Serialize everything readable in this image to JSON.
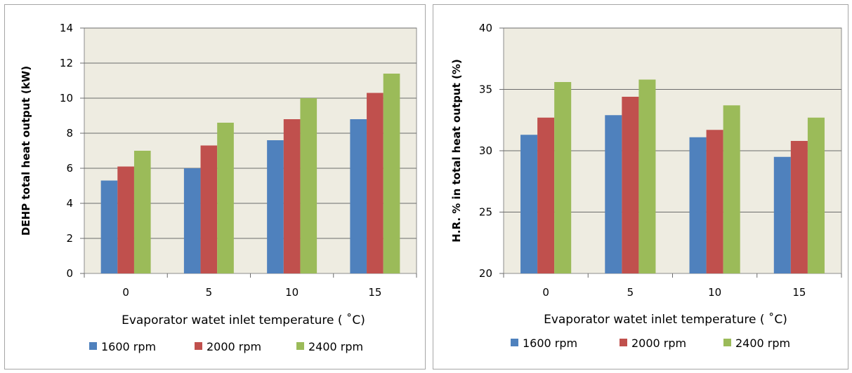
{
  "chart_data": [
    {
      "type": "bar",
      "categories": [
        "0",
        "5",
        "10",
        "15"
      ],
      "series": [
        {
          "name": "1600 rpm",
          "values": [
            5.3,
            6.0,
            7.6,
            8.8
          ],
          "color": "#4f81bd"
        },
        {
          "name": "2000 rpm",
          "values": [
            6.1,
            7.3,
            8.8,
            10.3
          ],
          "color": "#c0504d"
        },
        {
          "name": "2400 rpm",
          "values": [
            7.0,
            8.6,
            10.0,
            11.4
          ],
          "color": "#9bbb59"
        }
      ],
      "xlabel": "Evaporator watet inlet temperature ( ˚C)",
      "ylabel": "DEHP  total heat output  (kW)",
      "ylim": [
        0,
        14
      ],
      "yticks": [
        0,
        2,
        4,
        6,
        8,
        10,
        12,
        14
      ],
      "grid": true,
      "legend_position": "bottom",
      "plot_background": "#eeece1"
    },
    {
      "type": "bar",
      "categories": [
        "0",
        "5",
        "10",
        "15"
      ],
      "series": [
        {
          "name": "1600 rpm",
          "values": [
            31.3,
            32.9,
            31.1,
            29.5
          ],
          "color": "#4f81bd"
        },
        {
          "name": "2000 rpm",
          "values": [
            32.7,
            34.4,
            31.7,
            30.8
          ],
          "color": "#c0504d"
        },
        {
          "name": "2400 rpm",
          "values": [
            35.6,
            35.8,
            33.7,
            32.7
          ],
          "color": "#9bbb59"
        }
      ],
      "xlabel": "Evaporator watet inlet temperature ( ˚C)",
      "ylabel": "H.R. % in total heat output (%)",
      "ylim": [
        20,
        40
      ],
      "yticks": [
        20,
        25,
        30,
        35,
        40
      ],
      "grid": true,
      "legend_position": "bottom",
      "plot_background": "#eeece1"
    }
  ]
}
